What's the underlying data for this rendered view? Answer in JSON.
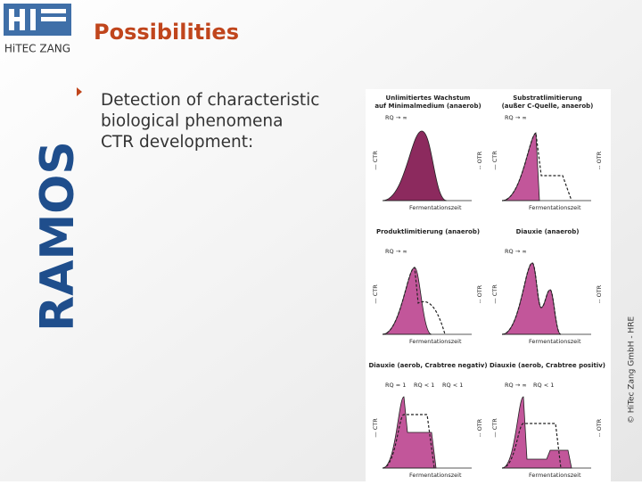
{
  "header": {
    "title": "Possibilities",
    "logo": "HiTEC ZANG"
  },
  "sidebar": "RAMOS",
  "bullet": {
    "lines": [
      "Detection of characteristic",
      "biological phenomena",
      "CTR development:"
    ]
  },
  "figure": {
    "panels": [
      {
        "title_lines": [
          "Unlimitiertes Wachstum",
          "auf Minimalmedium (anaerob)"
        ],
        "left_axis": "— CTR",
        "right_axis": "-- OTR",
        "x_axis": "Fermentationszeit",
        "annotations": [
          "RQ → ∞"
        ]
      },
      {
        "title_lines": [
          "Substratlimitierung",
          "(außer C-Quelle, anaerob)"
        ],
        "left_axis": "— CTR",
        "right_axis": "-- OTR",
        "x_axis": "Fermentationszeit",
        "annotations": [
          "RQ → ∞"
        ]
      },
      {
        "title_lines": [
          "Produktlimitierung (anaerob)"
        ],
        "left_axis": "— CTR",
        "right_axis": "-- OTR",
        "x_axis": "Fermentationszeit",
        "annotations": [
          "RQ → ∞"
        ]
      },
      {
        "title_lines": [
          "Diauxie (anaerob)"
        ],
        "left_axis": "— CTR",
        "right_axis": "-- OTR",
        "x_axis": "Fermentationszeit",
        "annotations": [
          "RQ → ∞"
        ]
      },
      {
        "title_lines": [
          "Diauxie (aerob, Crabtree negativ)"
        ],
        "left_axis": "— CTR",
        "right_axis": "-- OTR",
        "x_axis": "Fermentationszeit",
        "annotations": [
          "RQ = 1",
          "RQ < 1",
          "RQ < 1"
        ]
      },
      {
        "title_lines": [
          "Diauxie (aerob, Crabtree positiv)"
        ],
        "left_axis": "— CTR",
        "right_axis": "-- OTR",
        "x_axis": "Fermentationszeit",
        "annotations": [
          "RQ → ∞",
          "RQ < 1"
        ]
      }
    ]
  },
  "copyright": "© HiTec Zang GmbH - HRE"
}
